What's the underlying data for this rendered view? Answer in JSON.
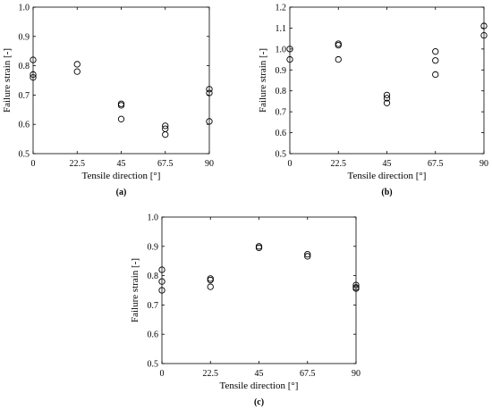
{
  "chart_data": [
    {
      "type": "scatter",
      "panel_label": "(a)",
      "xlabel": "Tensile direction [°]",
      "ylabel": "Failure strain [-]",
      "xticks": [
        "0",
        "22.5",
        "45",
        "67.5",
        "90"
      ],
      "yticks": [
        "0.5",
        "0.6",
        "0.7",
        "0.8",
        "0.9",
        "1.0"
      ],
      "xlim": [
        0,
        90
      ],
      "ylim": [
        0.5,
        1.0
      ],
      "points": [
        {
          "x": 0,
          "y": 0.82
        },
        {
          "x": 0,
          "y": 0.77
        },
        {
          "x": 0,
          "y": 0.76
        },
        {
          "x": 22.5,
          "y": 0.805
        },
        {
          "x": 22.5,
          "y": 0.78
        },
        {
          "x": 45,
          "y": 0.67
        },
        {
          "x": 45,
          "y": 0.665
        },
        {
          "x": 45,
          "y": 0.618
        },
        {
          "x": 67.5,
          "y": 0.595
        },
        {
          "x": 67.5,
          "y": 0.585
        },
        {
          "x": 67.5,
          "y": 0.565
        },
        {
          "x": 90,
          "y": 0.72
        },
        {
          "x": 90,
          "y": 0.707
        },
        {
          "x": 90,
          "y": 0.61
        }
      ]
    },
    {
      "type": "scatter",
      "panel_label": "(b)",
      "xlabel": "Tensile direction [°]",
      "ylabel": "Failure strain [-]",
      "xticks": [
        "0",
        "22.5",
        "45",
        "67.5",
        "90"
      ],
      "yticks": [
        "0.5",
        "0.6",
        "0.7",
        "0.8",
        "0.9",
        "1.0",
        "1.1",
        "1.2"
      ],
      "xlim": [
        0,
        90
      ],
      "ylim": [
        0.5,
        1.2
      ],
      "points": [
        {
          "x": 0,
          "y": 1.0
        },
        {
          "x": 0,
          "y": 0.95
        },
        {
          "x": 22.5,
          "y": 1.025
        },
        {
          "x": 22.5,
          "y": 1.018
        },
        {
          "x": 22.5,
          "y": 0.95
        },
        {
          "x": 45,
          "y": 0.78
        },
        {
          "x": 45,
          "y": 0.765
        },
        {
          "x": 45,
          "y": 0.742
        },
        {
          "x": 67.5,
          "y": 0.988
        },
        {
          "x": 67.5,
          "y": 0.945
        },
        {
          "x": 67.5,
          "y": 0.878
        },
        {
          "x": 90,
          "y": 1.11
        },
        {
          "x": 90,
          "y": 1.065
        }
      ]
    },
    {
      "type": "scatter",
      "panel_label": "(c)",
      "xlabel": "Tensile direction [°]",
      "ylabel": "Failure strain [-]",
      "xticks": [
        "0",
        "22.5",
        "45",
        "67.5",
        "90"
      ],
      "yticks": [
        "0.5",
        "0.6",
        "0.7",
        "0.8",
        "0.9",
        "1.0"
      ],
      "xlim": [
        0,
        90
      ],
      "ylim": [
        0.5,
        1.0
      ],
      "points": [
        {
          "x": 0,
          "y": 0.82
        },
        {
          "x": 0,
          "y": 0.78
        },
        {
          "x": 0,
          "y": 0.75
        },
        {
          "x": 22.5,
          "y": 0.79
        },
        {
          "x": 22.5,
          "y": 0.785
        },
        {
          "x": 22.5,
          "y": 0.762
        },
        {
          "x": 45,
          "y": 0.9
        },
        {
          "x": 45,
          "y": 0.895
        },
        {
          "x": 67.5,
          "y": 0.873
        },
        {
          "x": 67.5,
          "y": 0.866
        },
        {
          "x": 90,
          "y": 0.768
        },
        {
          "x": 90,
          "y": 0.76
        },
        {
          "x": 90,
          "y": 0.756
        }
      ]
    }
  ]
}
